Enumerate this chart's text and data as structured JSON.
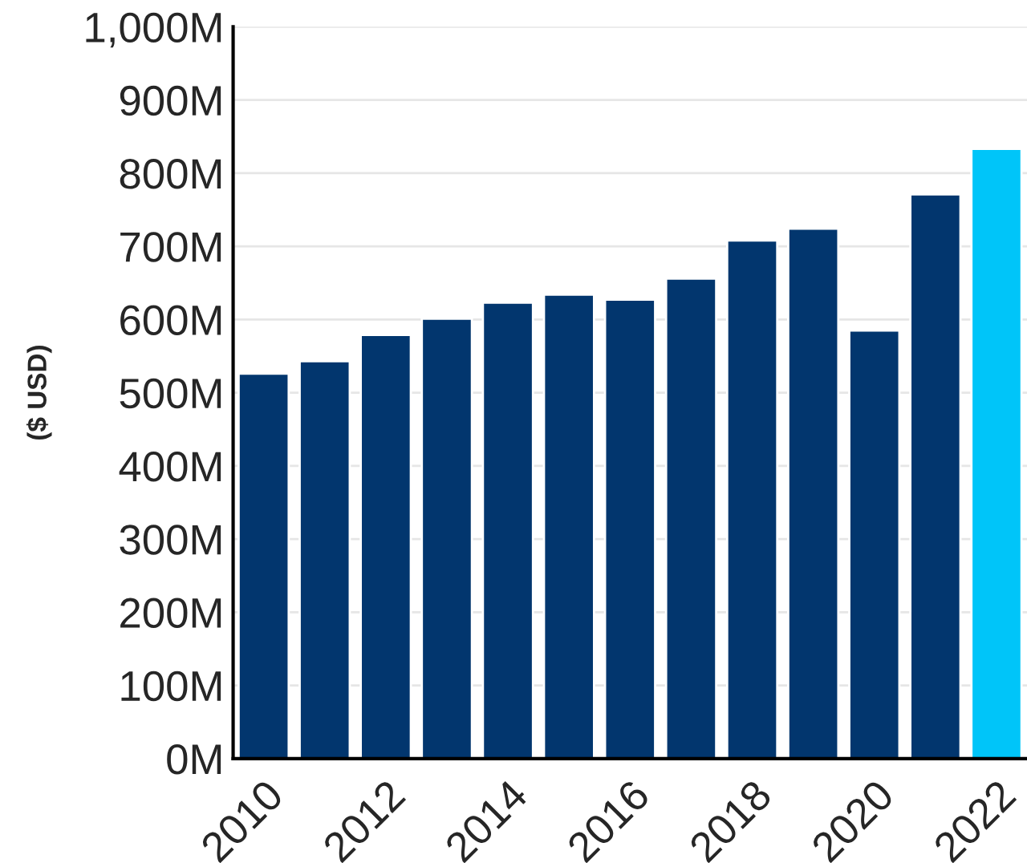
{
  "chart_data": {
    "type": "bar",
    "ylabel": "($ USD)",
    "categories": [
      "2010",
      null,
      "2012",
      null,
      "2014",
      null,
      "2016",
      null,
      "2018",
      null,
      "2020",
      null,
      "2022"
    ],
    "values": [
      526,
      543,
      579,
      601,
      623,
      634,
      627,
      656,
      708,
      724,
      585,
      771,
      833
    ],
    "colors": [
      "#02366e",
      "#02366e",
      "#02366e",
      "#02366e",
      "#02366e",
      "#02366e",
      "#02366e",
      "#02366e",
      "#02366e",
      "#02366e",
      "#02366e",
      "#02366e",
      "#00c5f9"
    ],
    "ylim": [
      0,
      1000
    ],
    "yticks": [
      {
        "value": 0,
        "label": "0M"
      },
      {
        "value": 100,
        "label": "100M"
      },
      {
        "value": 200,
        "label": "200M"
      },
      {
        "value": 300,
        "label": "300M"
      },
      {
        "value": 400,
        "label": "400M"
      },
      {
        "value": 500,
        "label": "500M"
      },
      {
        "value": 600,
        "label": "600M"
      },
      {
        "value": 700,
        "label": "700M"
      },
      {
        "value": 800,
        "label": "800M"
      },
      {
        "value": 900,
        "label": "900M"
      },
      {
        "value": 1000,
        "label": "1,000M"
      }
    ],
    "grid": "y",
    "legend": false
  }
}
